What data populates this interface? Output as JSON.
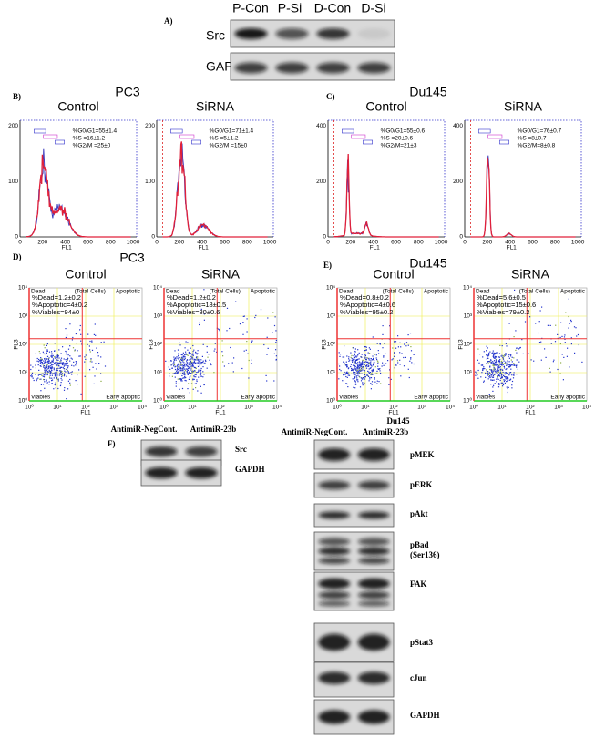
{
  "panel_a": {
    "label": "A)",
    "lanes": [
      "P-Con",
      "P-Si",
      "D-Con",
      "D-Si"
    ],
    "rows": [
      "Src",
      "GAPDH"
    ]
  },
  "panel_b": {
    "label": "B)",
    "cell_line": "PC3",
    "y_ticks": [
      "0",
      "100",
      "200"
    ],
    "plots": [
      {
        "title": "Control",
        "stats": [
          "%G0/G1=55±1.4",
          "%S      =16±1.2",
          "%G2/M =25±0"
        ]
      },
      {
        "title": "SiRNA",
        "stats": [
          "%G0/G1=71±1.4",
          "%S      =5±1.2",
          "%G2/M =15±0"
        ]
      }
    ]
  },
  "panel_c": {
    "label": "C)",
    "cell_line": "Du145",
    "y_ticks": [
      "0",
      "200",
      "400"
    ],
    "plots": [
      {
        "title": "Control",
        "stats": [
          "%G0/G1=55±0.6",
          "%S      =20±0.6",
          "%G2/M=21±3"
        ]
      },
      {
        "title": "SiRNA",
        "stats": [
          "%G0/G1=76±0.7",
          "%S      =8±0.7",
          "%G2/M=8±0.8"
        ]
      }
    ]
  },
  "histogram_axis": {
    "x_ticks": [
      "0",
      "200",
      "400",
      "600",
      "800",
      "1000"
    ],
    "x_label": "FL1"
  },
  "panel_d": {
    "label": "D)",
    "cell_line": "PC3",
    "plots": [
      {
        "title": "Control",
        "stats": [
          "%Dead=1.2±0.2",
          "%Apoptotic=4±0.2",
          "%Viables=94±0"
        ]
      },
      {
        "title": "SiRNA",
        "stats": [
          "%Dead=1.2±0.2",
          "%Apoptotic=18±0.5",
          "%Viables=80±0.6"
        ]
      }
    ]
  },
  "panel_e": {
    "label": "E)",
    "cell_line": "Du145",
    "plots": [
      {
        "title": "Control",
        "stats": [
          "%Dead=0.8±0.2",
          "%Apoptotic=4±0.6",
          "%Viables=95±0.2"
        ]
      },
      {
        "title": "SiRNA",
        "stats": [
          "%Dead=5.6±0.5",
          "%Apoptotic=15±0.6",
          "%Viables=79±0.2"
        ]
      }
    ]
  },
  "dot_axis": {
    "ticks": [
      "10⁰",
      "10¹",
      "10²",
      "10³",
      "10⁴"
    ],
    "x_label": "FL1",
    "y_label": "FL3",
    "quadrants": [
      "Dead",
      "(Total Cells)",
      "Apoptotic",
      "Viables",
      "Early apoptic"
    ]
  },
  "panel_f": {
    "label": "F)",
    "left_header": [
      "AntimiR-NegCont.",
      "AntimiR-23b"
    ],
    "left_rows": [
      "Src",
      "GAPDH"
    ],
    "right_title": "Du145",
    "right_header": [
      "AntimiR-NegCont.",
      "AntimiR-23b"
    ],
    "right_rows": [
      "pMEK",
      "pERK",
      "pAkt",
      "pBad",
      "(Ser136)",
      "FAK",
      "pStat3",
      "cJun",
      "GAPDH"
    ]
  }
}
